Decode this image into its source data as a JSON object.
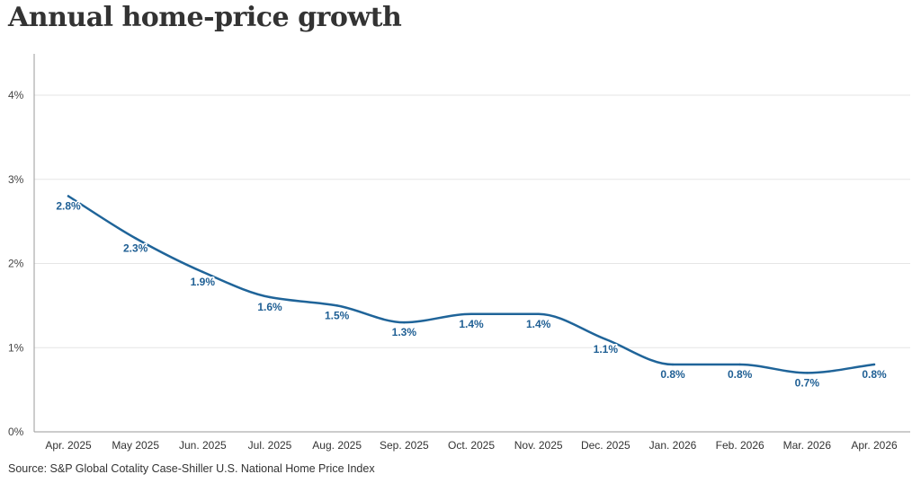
{
  "title": "Annual home-price growth",
  "source": "Source: S&P Global Cotality Case-Shiller U.S. National Home Price Index",
  "colors": {
    "line": "#1f6499",
    "label": "#1f5f94",
    "grid": "#e6e6e6",
    "axis": "#9a9a9a"
  },
  "chart_data": {
    "type": "line",
    "title": "Annual home-price growth",
    "xlabel": "",
    "ylabel": "",
    "categories": [
      "Apr. 2025",
      "May 2025",
      "Jun. 2025",
      "Jul. 2025",
      "Aug. 2025",
      "Sep. 2025",
      "Oct. 2025",
      "Nov. 2025",
      "Dec. 2025",
      "Jan. 2026",
      "Feb. 2026",
      "Mar. 2026",
      "Apr. 2026"
    ],
    "series": [
      {
        "values": [
          2.8,
          2.3,
          1.9,
          1.6,
          1.5,
          1.3,
          1.4,
          1.4,
          1.1,
          0.8,
          0.8,
          0.7,
          0.8
        ]
      }
    ],
    "data_labels": [
      "2.8%",
      "2.3%",
      "1.9%",
      "1.6%",
      "1.5%",
      "1.3%",
      "1.4%",
      "1.4%",
      "1.1%",
      "0.8%",
      "0.8%",
      "0.7%",
      "0.8%"
    ],
    "yticks": [
      0,
      1,
      2,
      3,
      4
    ],
    "ytick_labels": [
      "0%",
      "1%",
      "2%",
      "3%",
      "4%"
    ],
    "ylim": [
      0,
      4
    ],
    "grid": true,
    "legend": "none"
  }
}
